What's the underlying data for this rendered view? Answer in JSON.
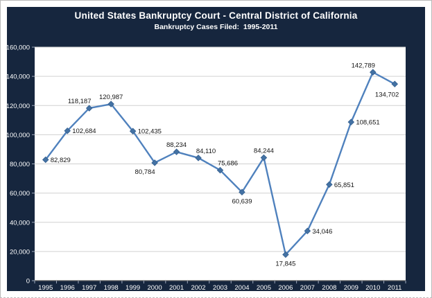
{
  "header": {
    "title": "United States Bankruptcy Court - Central District of California",
    "subtitle": "Bankruptcy Cases Filed:  1995-2011"
  },
  "colors": {
    "panel_bg": "#16263e",
    "plot_bg": "#ffffff",
    "line": "#4f81bd",
    "marker_fill": "#4472a4",
    "marker_stroke": "#35608f",
    "gridline": "#d0d0d0",
    "axis_line": "#595959",
    "tick": "#9fa9bc",
    "axis_text": "#ffffff",
    "data_label_text": "#141414"
  },
  "chart_data": {
    "type": "line",
    "title": "United States Bankruptcy Court - Central District of California",
    "subtitle": "Bankruptcy Cases Filed:  1995-2011",
    "categories": [
      "1995",
      "1996",
      "1997",
      "1998",
      "1999",
      "2000",
      "2001",
      "2002",
      "2003",
      "2004",
      "2005",
      "2006",
      "2007",
      "2008",
      "2009",
      "2010",
      "2011"
    ],
    "values": [
      82829,
      102684,
      118187,
      120987,
      102435,
      80784,
      88234,
      84110,
      75686,
      60639,
      84244,
      17845,
      34046,
      65851,
      108651,
      142789,
      134702
    ],
    "data_labels": [
      "82,829",
      "102,684",
      "118,187",
      "120,987",
      "102,435",
      "80,784",
      "88,234",
      "84,110",
      "75,686",
      "60,639",
      "84,244",
      "17,845",
      "34,046",
      "65,851",
      "108,651",
      "142,789",
      "134,702"
    ],
    "label_positions": [
      "right",
      "right",
      "above-left",
      "above",
      "right",
      "below-left",
      "above",
      "above-right",
      "above-right",
      "below",
      "above",
      "below",
      "right",
      "right",
      "right",
      "above-left",
      "below-end"
    ],
    "xlabel": "",
    "ylabel": "",
    "ylim": [
      0,
      160000
    ],
    "ytick_step": 20000,
    "ytick_labels": [
      "0",
      "20,000",
      "40,000",
      "60,000",
      "80,000",
      "100,000",
      "120,000",
      "140,000",
      "160,000"
    ],
    "grid": true,
    "legend": "none",
    "marker": "diamond"
  }
}
